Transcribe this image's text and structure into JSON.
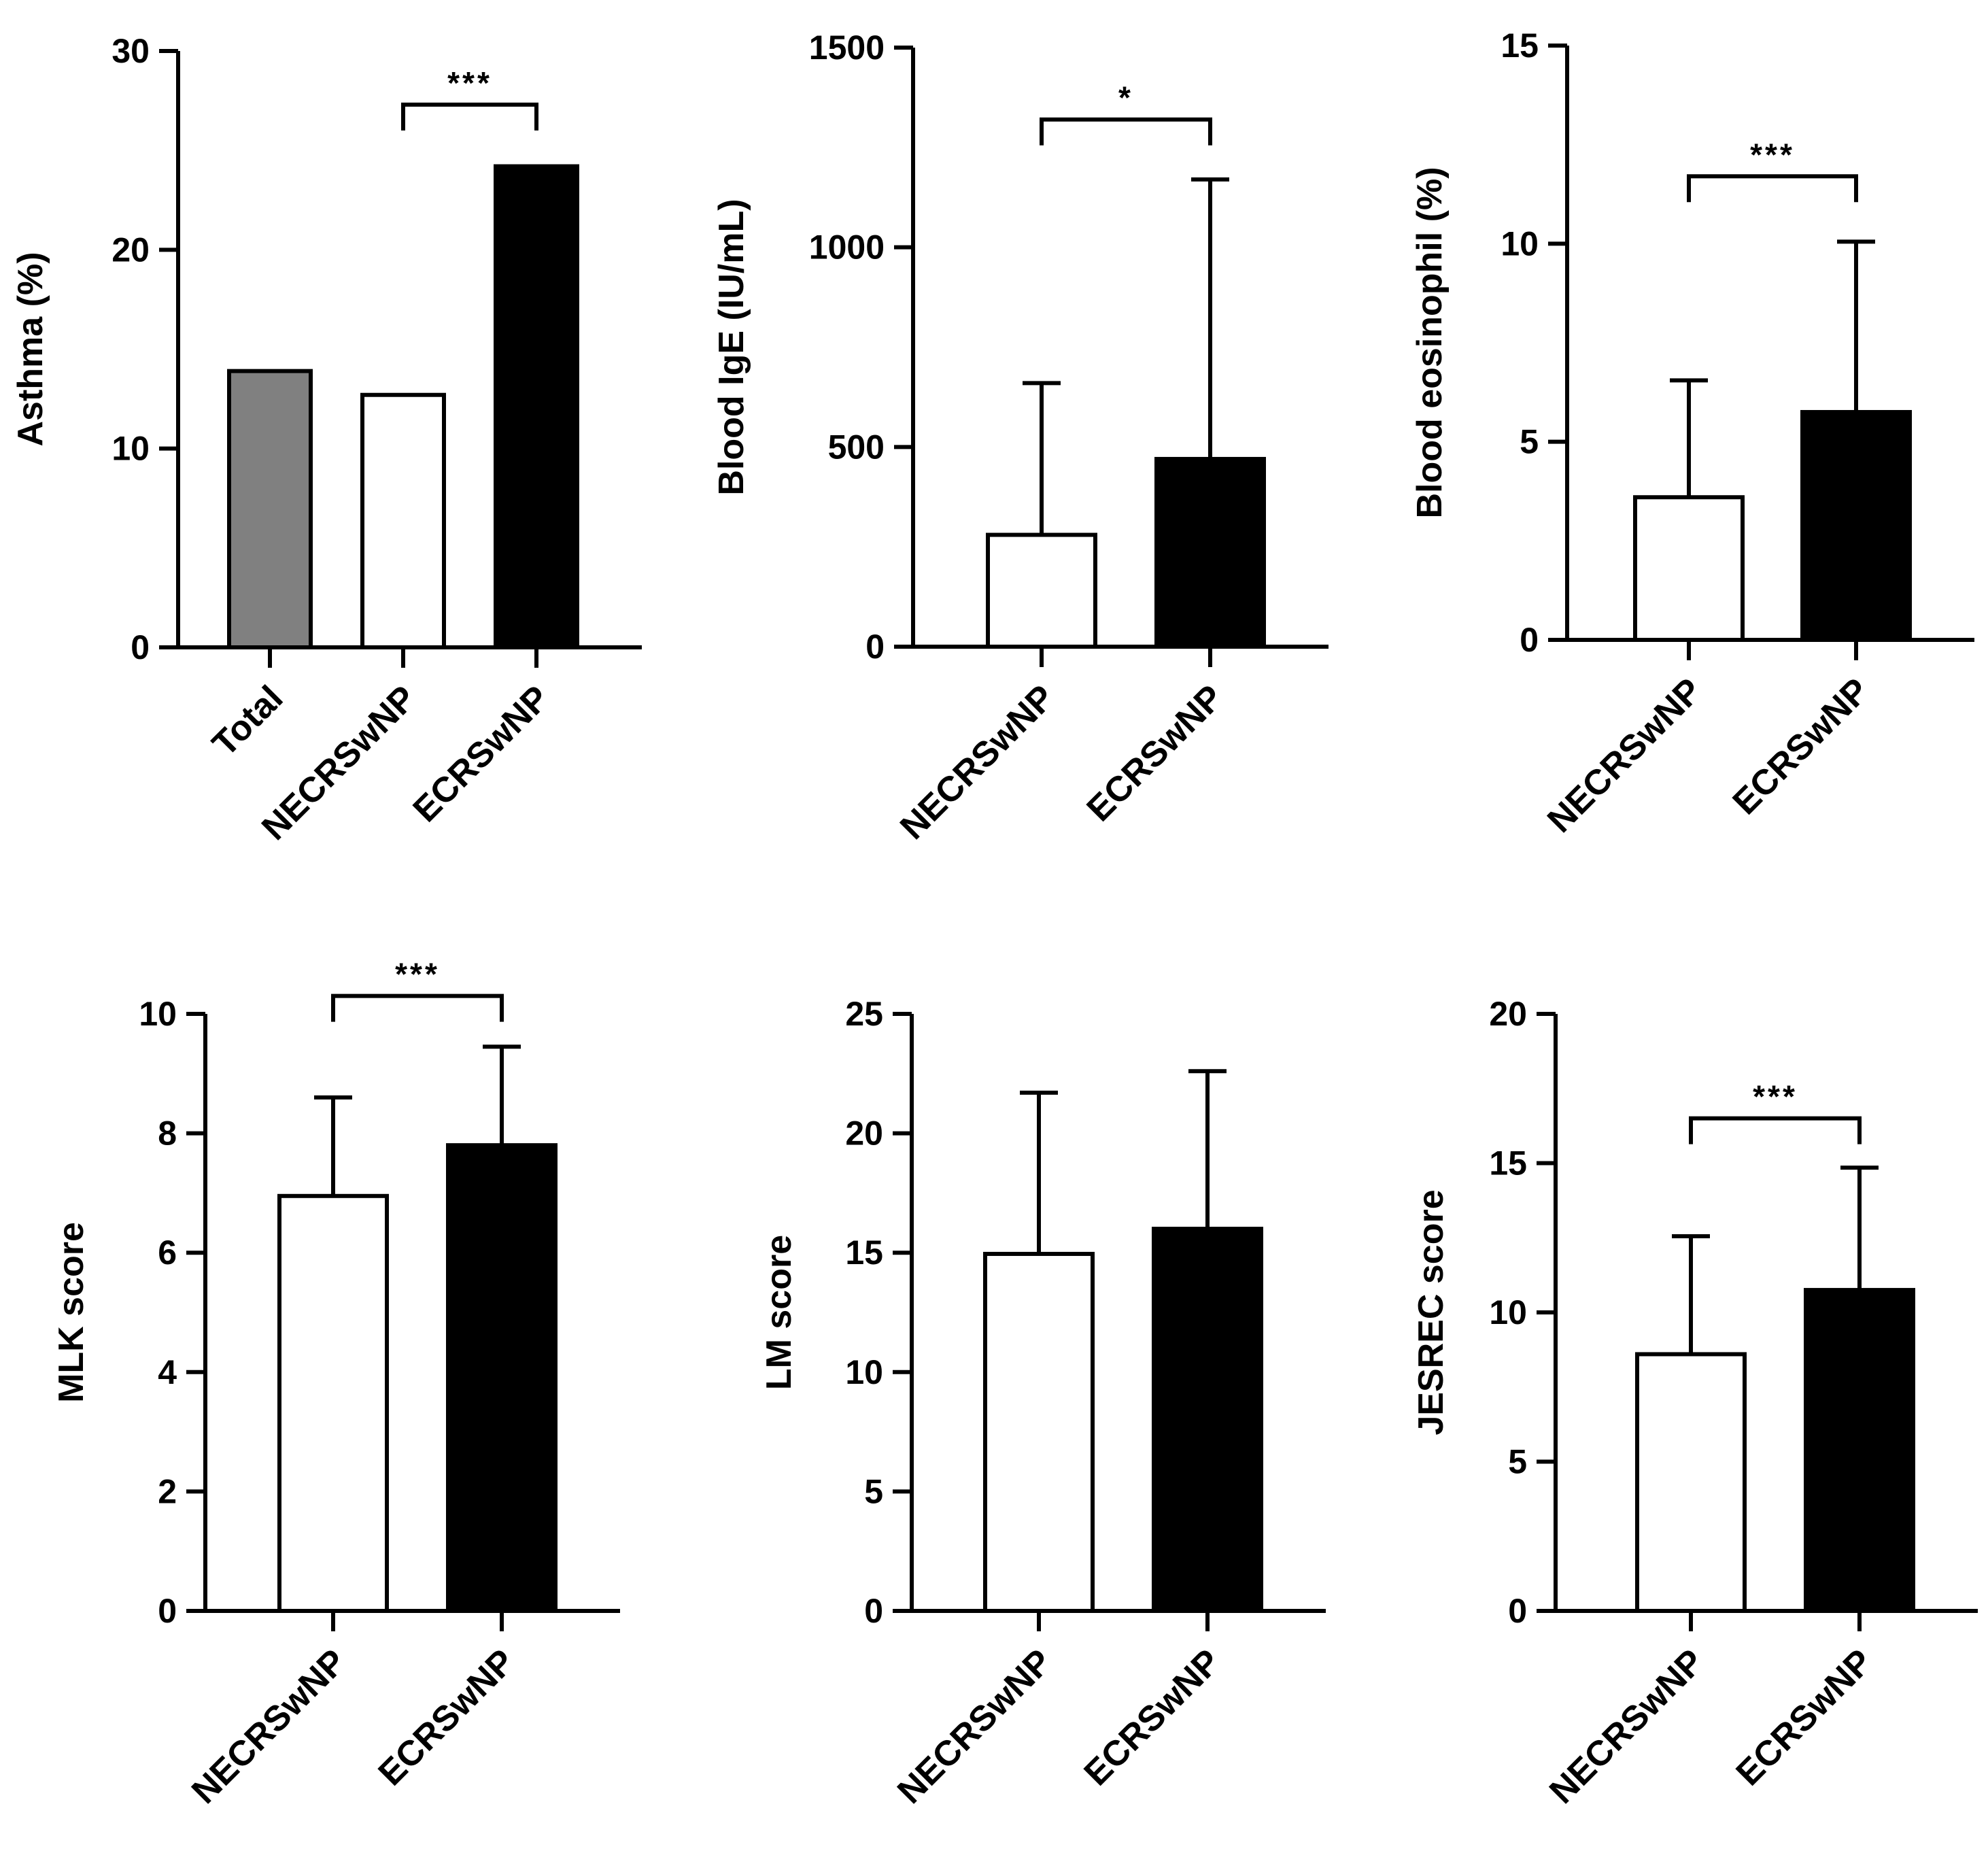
{
  "colors": {
    "gray": "#808080",
    "white": "#ffffff",
    "black": "#000000"
  },
  "chart_data": [
    {
      "type": "bar",
      "title": "",
      "ylabel": "Asthma (%)",
      "ylim": [
        0,
        30
      ],
      "yticks": [
        0,
        10,
        20,
        30
      ],
      "categories": [
        "Total",
        "NECRSwNP",
        "ECRSwNP"
      ],
      "values": [
        13.9,
        12.7,
        24.2
      ],
      "errors": [
        null,
        null,
        null
      ],
      "fills": [
        "gray",
        "white",
        "black"
      ],
      "significance": {
        "from": 1,
        "to": 2,
        "label": "***",
        "y": 27.3
      }
    },
    {
      "type": "bar",
      "title": "",
      "ylabel": "Blood IgE (IU/mL)",
      "ylim": [
        0,
        1500
      ],
      "yticks": [
        0,
        500,
        1000,
        1500
      ],
      "categories": [
        "NECRSwNP",
        "ECRSwNP"
      ],
      "values": [
        280,
        470
      ],
      "errors": [
        660,
        1170
      ],
      "fills": [
        "white",
        "black"
      ],
      "significance": {
        "from": 0,
        "to": 1,
        "label": "*",
        "y": 1320
      }
    },
    {
      "type": "bar",
      "title": "",
      "ylabel": "Blood eosinophil (%)",
      "ylim": [
        0,
        15
      ],
      "yticks": [
        0,
        5,
        10,
        15
      ],
      "categories": [
        "NECRSwNP",
        "ECRSwNP"
      ],
      "values": [
        3.6,
        5.75
      ],
      "errors": [
        6.55,
        10.05
      ],
      "fills": [
        "white",
        "black"
      ],
      "significance": {
        "from": 0,
        "to": 1,
        "label": "***",
        "y": 11.7
      }
    },
    {
      "type": "bar",
      "title": "",
      "ylabel": "MLK score",
      "ylim": [
        0,
        10
      ],
      "yticks": [
        0,
        2,
        4,
        6,
        8,
        10
      ],
      "categories": [
        "NECRSwNP",
        "ECRSwNP"
      ],
      "values": [
        6.95,
        7.8
      ],
      "errors": [
        8.6,
        9.45
      ],
      "fills": [
        "white",
        "black"
      ],
      "significance": {
        "from": 0,
        "to": 1,
        "label": "***",
        "y": 10.3
      }
    },
    {
      "type": "bar",
      "title": "",
      "ylabel": "LM score",
      "ylim": [
        0,
        25
      ],
      "yticks": [
        0,
        5,
        10,
        15,
        20,
        25
      ],
      "categories": [
        "NECRSwNP",
        "ECRSwNP"
      ],
      "values": [
        14.95,
        16.0
      ],
      "errors": [
        21.7,
        22.6
      ],
      "fills": [
        "white",
        "black"
      ],
      "significance": null
    },
    {
      "type": "bar",
      "title": "",
      "ylabel": "JESREC score",
      "ylim": [
        0,
        20
      ],
      "yticks": [
        0,
        5,
        10,
        15,
        20
      ],
      "categories": [
        "NECRSwNP",
        "ECRSwNP"
      ],
      "values": [
        8.6,
        10.75
      ],
      "errors": [
        12.55,
        14.85
      ],
      "fills": [
        "white",
        "black"
      ],
      "significance": {
        "from": 0,
        "to": 1,
        "label": "***",
        "y": 16.5
      }
    }
  ]
}
